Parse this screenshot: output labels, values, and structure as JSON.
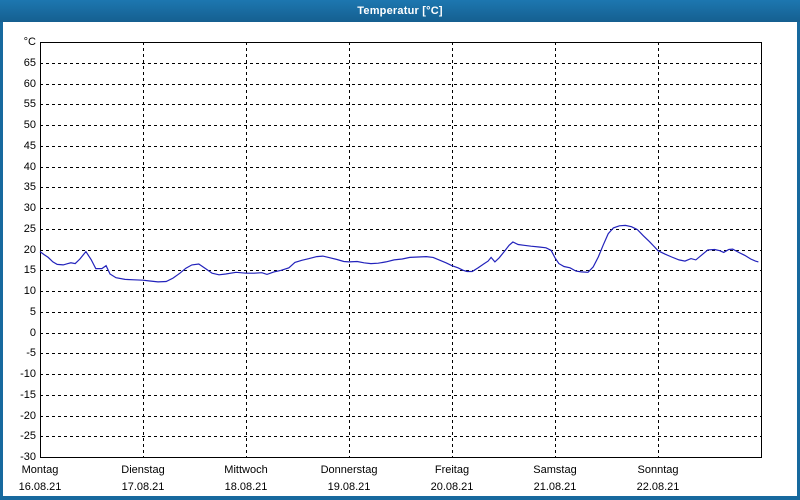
{
  "window": {
    "title": "Temperatur [°C]"
  },
  "colors": {
    "frame": "#17699e",
    "titlebar_top": "#1d77b0",
    "titlebar_bottom": "#155f90",
    "title_text": "#ffffff",
    "plot_bg": "#ffffff",
    "grid": "#000000",
    "line": "#2222bb"
  },
  "chart_data": {
    "type": "line",
    "title": "Temperatur [°C]",
    "xlabel": "",
    "ylabel": "°C",
    "ylim": [
      -30,
      70
    ],
    "ytick_step": 5,
    "ytick_labels": [
      65,
      60,
      55,
      50,
      45,
      40,
      35,
      30,
      25,
      20,
      15,
      10,
      5,
      0,
      -5,
      -10,
      -15,
      -20,
      -25,
      -30
    ],
    "grid": "dashed",
    "legend": "none",
    "x_axis_days": [
      {
        "name": "Montag",
        "date": "16.08.21"
      },
      {
        "name": "Dienstag",
        "date": "17.08.21"
      },
      {
        "name": "Mittwoch",
        "date": "18.08.21"
      },
      {
        "name": "Donnerstag",
        "date": "19.08.21"
      },
      {
        "name": "Freitag",
        "date": "20.08.21"
      },
      {
        "name": "Samstag",
        "date": "21.08.21"
      },
      {
        "name": "Sonntag",
        "date": "22.08.21"
      }
    ],
    "x_unit": "hours since 16.08.21 00:00",
    "x_range_hours": [
      0,
      168
    ],
    "series": [
      {
        "name": "Temperatur",
        "color": "#2222bb",
        "points": [
          [
            0,
            19.5
          ],
          [
            0.9,
            18.8
          ],
          [
            1.9,
            18.1
          ],
          [
            3,
            17.0
          ],
          [
            4,
            16.4
          ],
          [
            5.4,
            16.3
          ],
          [
            6.5,
            16.6
          ],
          [
            7.2,
            16.8
          ],
          [
            8.2,
            16.6
          ],
          [
            9.3,
            17.7
          ],
          [
            10.7,
            19.5
          ],
          [
            11.9,
            17.6
          ],
          [
            13,
            15.4
          ],
          [
            14.4,
            15.4
          ],
          [
            15.4,
            16.1
          ],
          [
            16.3,
            14.1
          ],
          [
            17.7,
            13.2
          ],
          [
            19.8,
            12.8
          ],
          [
            21.9,
            12.7
          ],
          [
            24,
            12.6
          ],
          [
            25.6,
            12.4
          ],
          [
            27.5,
            12.2
          ],
          [
            29.4,
            12.3
          ],
          [
            31,
            13.1
          ],
          [
            32.6,
            14.3
          ],
          [
            34,
            15.5
          ],
          [
            35.4,
            16.3
          ],
          [
            37,
            16.5
          ],
          [
            38.7,
            15.3
          ],
          [
            40.1,
            14.3
          ],
          [
            41.7,
            13.9
          ],
          [
            43.3,
            14.1
          ],
          [
            45.7,
            14.5
          ],
          [
            48,
            14.3
          ],
          [
            49.9,
            14.3
          ],
          [
            51.7,
            14.4
          ],
          [
            52.9,
            14.0
          ],
          [
            54.5,
            14.6
          ],
          [
            56.2,
            15.0
          ],
          [
            58,
            15.6
          ],
          [
            59.4,
            16.9
          ],
          [
            61,
            17.4
          ],
          [
            62.7,
            17.8
          ],
          [
            64.5,
            18.3
          ],
          [
            65.9,
            18.4
          ],
          [
            67.6,
            18.0
          ],
          [
            69.2,
            17.6
          ],
          [
            70.8,
            17.1
          ],
          [
            72,
            17.0
          ],
          [
            73.9,
            17.1
          ],
          [
            75.5,
            16.8
          ],
          [
            77.1,
            16.6
          ],
          [
            78.8,
            16.7
          ],
          [
            80.6,
            17.0
          ],
          [
            82.5,
            17.5
          ],
          [
            84.4,
            17.7
          ],
          [
            86.2,
            18.1
          ],
          [
            88.1,
            18.2
          ],
          [
            90,
            18.3
          ],
          [
            91.6,
            18.1
          ],
          [
            93.2,
            17.4
          ],
          [
            94.6,
            16.8
          ],
          [
            96,
            16.1
          ],
          [
            97.4,
            15.6
          ],
          [
            98.6,
            15.0
          ],
          [
            99.5,
            14.7
          ],
          [
            100.7,
            14.7
          ],
          [
            102.1,
            15.6
          ],
          [
            103.5,
            16.6
          ],
          [
            104.4,
            17.2
          ],
          [
            105.1,
            18.1
          ],
          [
            106,
            17.0
          ],
          [
            107,
            18.0
          ],
          [
            108.1,
            19.4
          ],
          [
            109.3,
            21.0
          ],
          [
            110.2,
            21.8
          ],
          [
            111.4,
            21.2
          ],
          [
            112.8,
            21.0
          ],
          [
            114.4,
            20.8
          ],
          [
            116.3,
            20.6
          ],
          [
            117.9,
            20.4
          ],
          [
            119.1,
            19.8
          ],
          [
            120,
            18.0
          ],
          [
            120.9,
            16.6
          ],
          [
            122.1,
            15.9
          ],
          [
            123.5,
            15.6
          ],
          [
            124.9,
            14.8
          ],
          [
            126.1,
            14.6
          ],
          [
            127.7,
            14.5
          ],
          [
            128.9,
            15.8
          ],
          [
            130.1,
            18.2
          ],
          [
            131.2,
            21.0
          ],
          [
            132.4,
            23.8
          ],
          [
            133.6,
            25.2
          ],
          [
            135,
            25.7
          ],
          [
            136.4,
            25.8
          ],
          [
            137.8,
            25.5
          ],
          [
            139.2,
            24.8
          ],
          [
            140.6,
            23.3
          ],
          [
            142,
            21.9
          ],
          [
            143.2,
            20.6
          ],
          [
            144,
            19.7
          ],
          [
            145.6,
            18.9
          ],
          [
            147.2,
            18.2
          ],
          [
            148.9,
            17.5
          ],
          [
            150.3,
            17.2
          ],
          [
            151.7,
            17.8
          ],
          [
            152.8,
            17.5
          ],
          [
            154.2,
            18.7
          ],
          [
            155.6,
            19.9
          ],
          [
            157.2,
            20.0
          ],
          [
            158.4,
            19.7
          ],
          [
            159.3,
            19.3
          ],
          [
            160.5,
            20.0
          ],
          [
            161.4,
            20.1
          ],
          [
            162.8,
            19.3
          ],
          [
            164.2,
            18.6
          ],
          [
            165.6,
            17.7
          ],
          [
            166.7,
            17.2
          ],
          [
            167.4,
            17.0
          ]
        ]
      }
    ]
  }
}
